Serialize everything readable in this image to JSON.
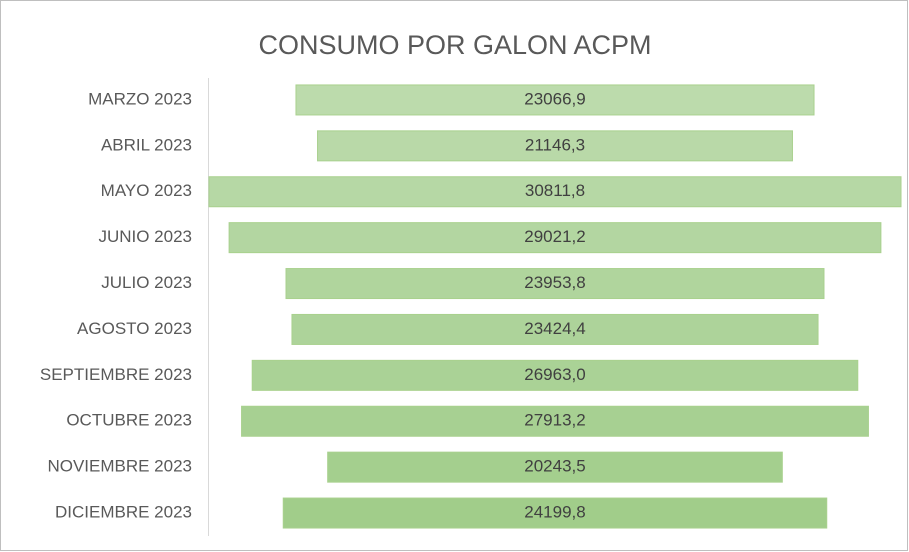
{
  "chart_data": {
    "type": "funnel",
    "title": "CONSUMO POR GALON ACPM",
    "categories": [
      "MARZO 2023",
      "ABRIL 2023",
      "MAYO 2023",
      "JUNIO 2023",
      "JULIO 2023",
      "AGOSTO 2023",
      "SEPTIEMBRE 2023",
      "OCTUBRE 2023",
      "NOVIEMBRE 2023",
      "DICIEMBRE 2023"
    ],
    "values": [
      23066.9,
      21146.3,
      30811.8,
      29021.2,
      23953.8,
      23424.4,
      26963.0,
      27913.2,
      20243.5,
      24199.8
    ],
    "value_labels": [
      "23066,9",
      "21146,3",
      "30811,8",
      "29021,2",
      "23953,8",
      "23424,4",
      "26963,0",
      "27913,2",
      "20243,5",
      "24199,8"
    ],
    "colors": [
      "#bcdbac",
      "#b9d9a8",
      "#b6d8a5",
      "#b3d6a1",
      "#b0d59d",
      "#add39a",
      "#aad296",
      "#a7d092",
      "#a4cf8e",
      "#a1cd8a"
    ]
  }
}
